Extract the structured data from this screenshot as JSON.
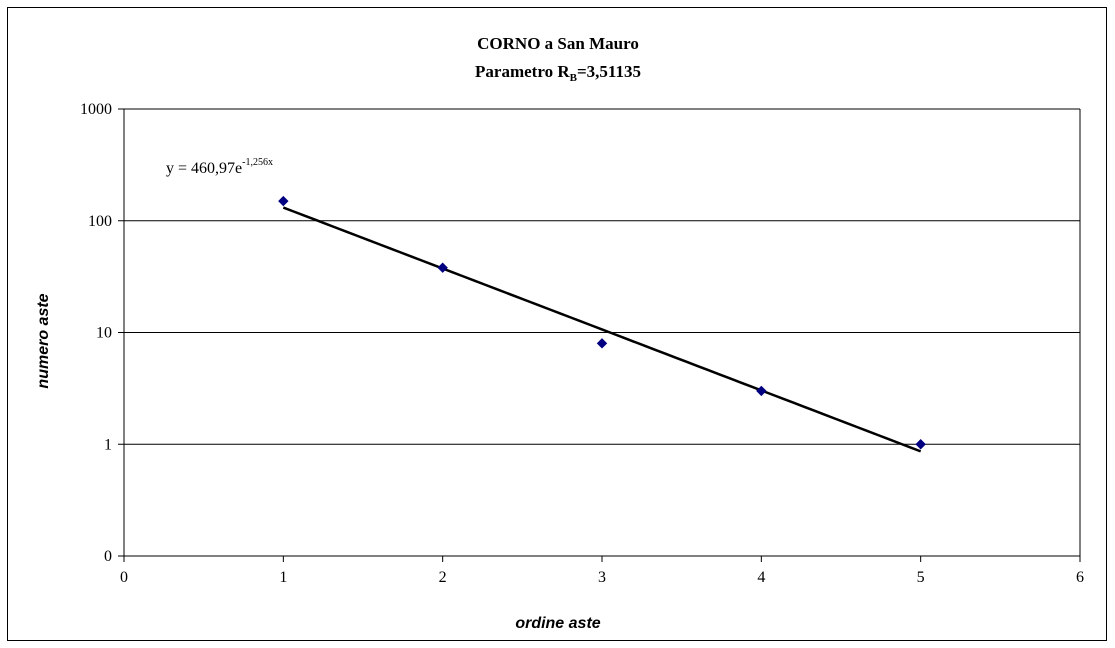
{
  "chart_data": {
    "type": "scatter",
    "title": "CORNO a San Mauro",
    "subtitle_prefix": "Parametro R",
    "subtitle_subscript": "B",
    "subtitle_suffix": "=3,51135",
    "xlabel": "ordine aste",
    "ylabel": "numero aste",
    "xlim": [
      0,
      6
    ],
    "x_ticks": [
      0,
      1,
      2,
      3,
      4,
      5,
      6
    ],
    "y_scale": "log",
    "ylim": [
      0.1,
      1000
    ],
    "y_ticks": [
      0.1,
      1,
      10,
      100,
      1000
    ],
    "y_tick_labels": [
      "0",
      "1",
      "10",
      "100",
      "1000"
    ],
    "grid": "horizontal",
    "marker_color": "#000080",
    "trend_color": "#000000",
    "series": [
      {
        "x": [
          1,
          2,
          3,
          4,
          5
        ],
        "y": [
          150,
          38,
          8,
          3,
          1
        ]
      }
    ],
    "trendline": {
      "type": "exponential",
      "a": 460.97,
      "b": -1.256,
      "x_range": [
        1,
        5
      ],
      "equation_prefix": "y = 460,97e",
      "equation_exponent": "-1,256x"
    }
  }
}
